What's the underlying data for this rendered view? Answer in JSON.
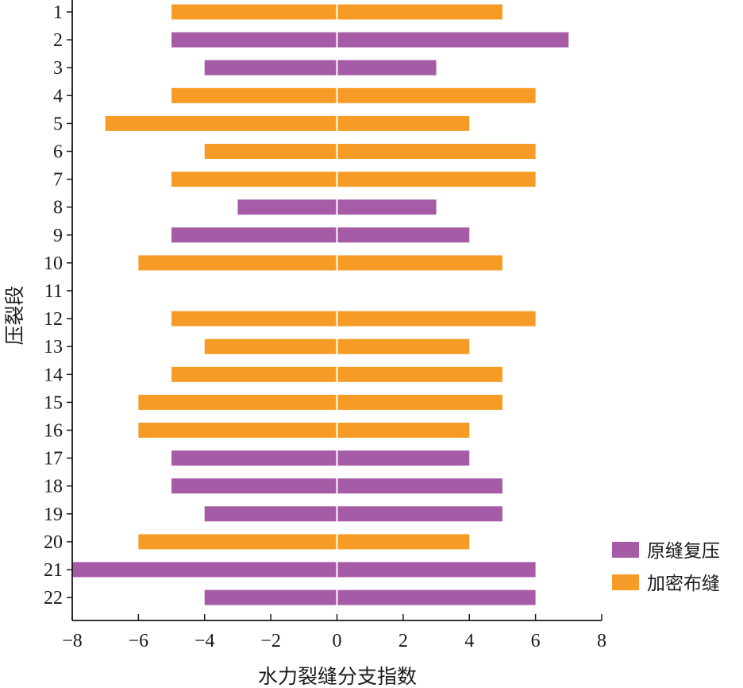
{
  "chart_data": {
    "type": "bar",
    "orientation": "horizontal-diverging",
    "xlabel": "水力裂缝分支指数",
    "ylabel": "压裂段",
    "xlim": [
      -8,
      8
    ],
    "xticks": [
      "−8",
      "−6",
      "−4",
      "−2",
      "0",
      "2",
      "4",
      "6",
      "8"
    ],
    "xtick_values": [
      -8,
      -6,
      -4,
      -2,
      0,
      2,
      4,
      6,
      8
    ],
    "categories": [
      "1",
      "2",
      "3",
      "4",
      "5",
      "6",
      "7",
      "8",
      "9",
      "10",
      "11",
      "12",
      "13",
      "14",
      "15",
      "16",
      "17",
      "18",
      "19",
      "20",
      "21",
      "22"
    ],
    "left_values": [
      -5,
      -5,
      -4,
      -5,
      -7,
      -4,
      -5,
      -3,
      -5,
      -6,
      null,
      -5,
      -4,
      -5,
      -6,
      -6,
      -5,
      -5,
      -4,
      -6,
      -8,
      -4
    ],
    "right_values": [
      5,
      7,
      3,
      6,
      4,
      6,
      6,
      3,
      4,
      5,
      null,
      6,
      4,
      5,
      5,
      4,
      4,
      5,
      5,
      4,
      6,
      6
    ],
    "series_of_stage": [
      "加密布缝",
      "原缝复压",
      "原缝复压",
      "加密布缝",
      "加密布缝",
      "加密布缝",
      "加密布缝",
      "原缝复压",
      "原缝复压",
      "加密布缝",
      null,
      "加密布缝",
      "加密布缝",
      "加密布缝",
      "加密布缝",
      "加密布缝",
      "原缝复压",
      "原缝复压",
      "原缝复压",
      "加密布缝",
      "原缝复压",
      "原缝复压"
    ],
    "legend": [
      {
        "name": "原缝复压",
        "color": "#a55ba6"
      },
      {
        "name": "加密布缝",
        "color": "#f69c26"
      }
    ],
    "legend_position": "bottom-right",
    "grid": false
  }
}
